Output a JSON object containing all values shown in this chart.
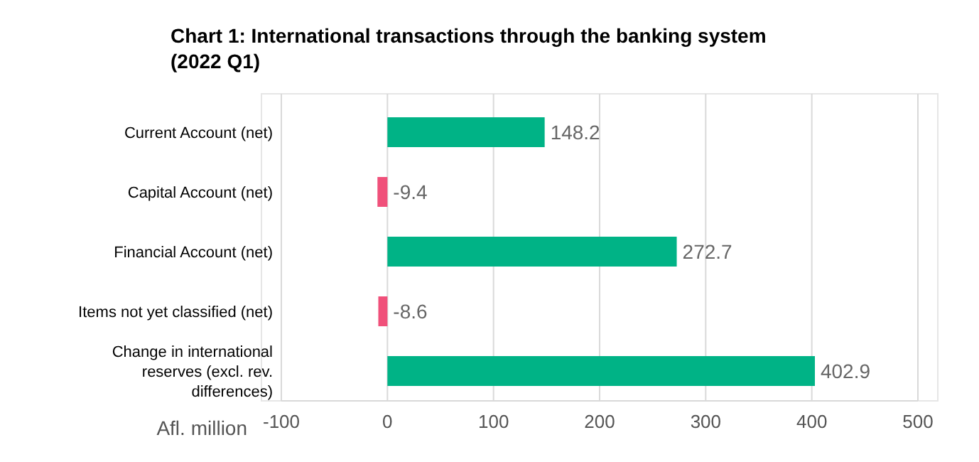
{
  "chart_data": {
    "type": "bar",
    "orientation": "horizontal",
    "title": "Chart 1: International transactions through the banking system (2022 Q1)",
    "xlabel": "Afl. million",
    "categories": [
      "Current Account (net)",
      "Capital Account (net)",
      "Financial Account (net)",
      "Items not yet classified (net)",
      "Change in international reserves (excl. rev. differences)"
    ],
    "values": [
      148.2,
      -9.4,
      272.7,
      -8.6,
      402.9
    ],
    "colors": [
      "#00b386",
      "#f0507a",
      "#00b386",
      "#f0507a",
      "#00b386"
    ],
    "xlim": [
      -100,
      500
    ],
    "xticks": [
      -100,
      0,
      100,
      200,
      300,
      400,
      500
    ],
    "grid": "x",
    "data_labels": true
  }
}
